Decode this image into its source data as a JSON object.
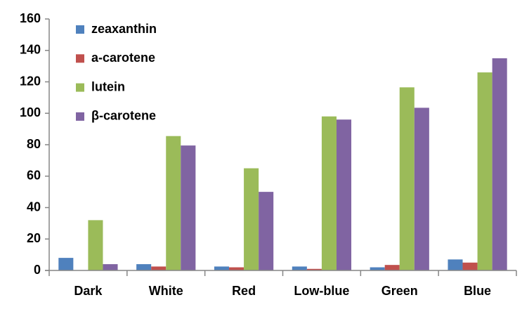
{
  "chart_data": {
    "type": "bar",
    "categories": [
      "Dark",
      "White",
      "Red",
      "Low-blue",
      "Green",
      "Blue"
    ],
    "series": [
      {
        "name": "zeaxanthin",
        "color": "#4f81bd",
        "values": [
          8,
          4,
          2.5,
          2.5,
          2,
          7
        ]
      },
      {
        "name": "a-carotene",
        "color": "#c0504d",
        "values": [
          0,
          2.5,
          2,
          1,
          3.5,
          5
        ]
      },
      {
        "name": "lutein",
        "color": "#9bbb59",
        "values": [
          32,
          85.5,
          65,
          98,
          116.5,
          126
        ]
      },
      {
        "name": "β-carotene",
        "color": "#8064a2",
        "values": [
          4,
          79.5,
          50,
          96,
          103.5,
          135
        ]
      }
    ],
    "ylim": [
      0,
      160
    ],
    "yticks": [
      0,
      20,
      40,
      60,
      80,
      100,
      120,
      140,
      160
    ],
    "grid": false,
    "legend": "top-left"
  }
}
